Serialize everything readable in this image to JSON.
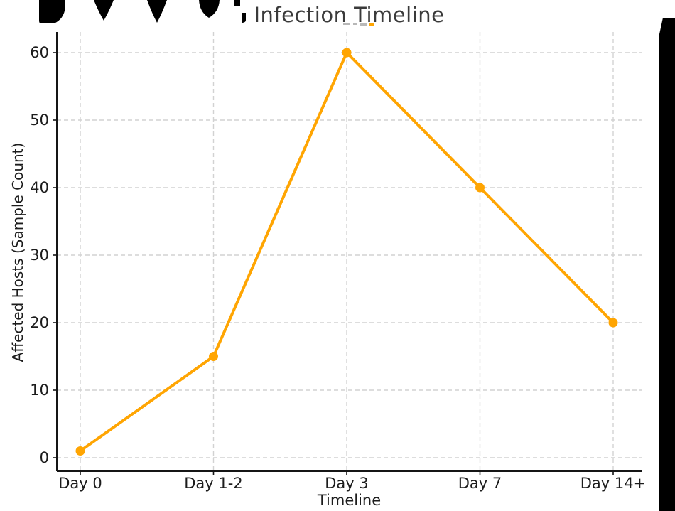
{
  "chart_data": {
    "type": "line",
    "title": "Infection Timeline",
    "xlabel": "Timeline",
    "ylabel": "Affected Hosts (Sample Count)",
    "categories": [
      "Day 0",
      "Day 1-2",
      "Day 3",
      "Day 7",
      "Day 14+"
    ],
    "series": [
      {
        "name": "Affected Hosts",
        "values": [
          1,
          15,
          60,
          40,
          20
        ]
      }
    ],
    "yticks": [
      0,
      10,
      20,
      30,
      40,
      50,
      60
    ],
    "ylim": [
      -2,
      63
    ],
    "grid": true,
    "grid_style": "dashed",
    "legend": false,
    "marker": "filled-circle"
  },
  "colors": {
    "line": "#FFA502",
    "text": "#1c1c1c",
    "title": "#3a3a3a",
    "grid": "#d2d2d2",
    "spine": "#151515",
    "artifact": "#000000"
  },
  "artifacts": {
    "description": "unrendered glyph fragments: black blob cluster at top-left, small marks beside title, black band along right edge"
  }
}
